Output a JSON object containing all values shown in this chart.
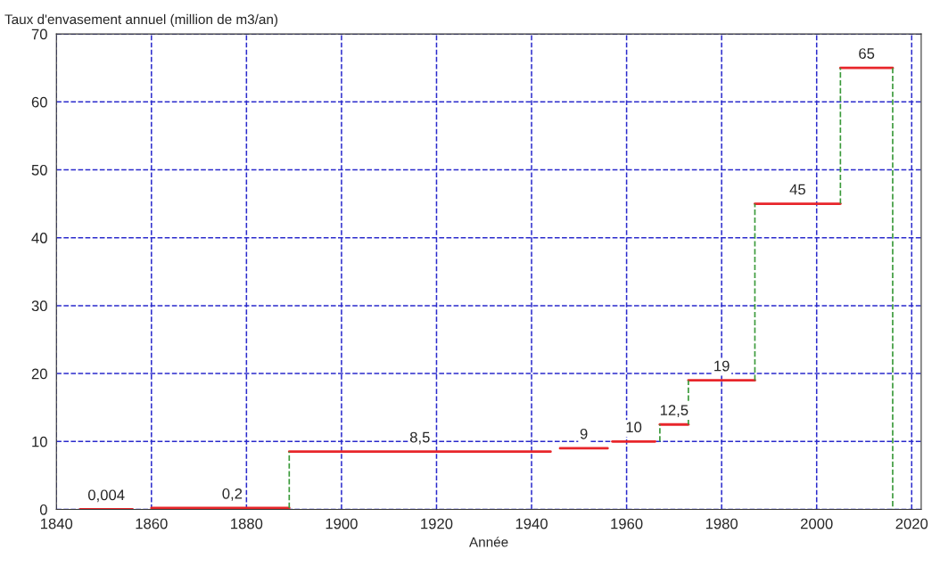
{
  "chart_data": {
    "type": "line",
    "ylabel": "Taux d'envasement annuel (million de m3/an)",
    "xlabel": "Année",
    "xlim": [
      1840,
      2022
    ],
    "xticks": [
      1840,
      1860,
      1880,
      1900,
      1920,
      1940,
      1960,
      1980,
      2000,
      2020
    ],
    "ylim": [
      0,
      70
    ],
    "yticks": [
      0,
      10,
      20,
      30,
      40,
      50,
      60,
      70
    ],
    "grid": true,
    "series": [
      {
        "color": "#e8262b",
        "x": [
          1845,
          1856
        ],
        "values": [
          0.004,
          0.004
        ]
      },
      {
        "color": "#e8262b",
        "x": [
          1860,
          1889
        ],
        "values": [
          0.2,
          0.2
        ]
      },
      {
        "color": "#e8262b",
        "x": [
          1889,
          1944
        ],
        "values": [
          8.5,
          8.5
        ]
      },
      {
        "color": "#e8262b",
        "x": [
          1946,
          1956
        ],
        "values": [
          9,
          9
        ]
      },
      {
        "color": "#e8262b",
        "x": [
          1957,
          1966
        ],
        "values": [
          10,
          10
        ]
      },
      {
        "color": "#e8262b",
        "x": [
          1967,
          1973
        ],
        "values": [
          12.5,
          12.5
        ]
      },
      {
        "color": "#e8262b",
        "x": [
          1973,
          1987
        ],
        "values": [
          19,
          19
        ]
      },
      {
        "color": "#e8262b",
        "x": [
          1987,
          2005
        ],
        "values": [
          45,
          45
        ]
      },
      {
        "color": "#e8262b",
        "x": [
          2005,
          2016
        ],
        "values": [
          65,
          65
        ]
      },
      {
        "color": "#3a9a3a",
        "line_style": "dashed",
        "x": [
          1889,
          1889
        ],
        "values": [
          0.2,
          8.5
        ]
      },
      {
        "color": "#3a9a3a",
        "line_style": "dashed",
        "x": [
          1967,
          1967
        ],
        "values": [
          10,
          12.5
        ]
      },
      {
        "color": "#3a9a3a",
        "line_style": "dashed",
        "x": [
          1973,
          1973
        ],
        "values": [
          12.5,
          19
        ]
      },
      {
        "color": "#3a9a3a",
        "line_style": "dashed",
        "x": [
          1987,
          1987
        ],
        "values": [
          19,
          45
        ]
      },
      {
        "color": "#3a9a3a",
        "line_style": "dashed",
        "x": [
          2005,
          2005
        ],
        "values": [
          45,
          65
        ]
      },
      {
        "color": "#3a9a3a",
        "line_style": "dashed",
        "x": [
          2016,
          2016
        ],
        "values": [
          65,
          0
        ]
      }
    ],
    "annotations": [
      {
        "text": "0,004",
        "x": 1850.5,
        "y": 0.004
      },
      {
        "text": "0,2",
        "x": 1877,
        "y": 0.2
      },
      {
        "text": "8,5",
        "x": 1916.5,
        "y": 8.5
      },
      {
        "text": "9",
        "x": 1951,
        "y": 9
      },
      {
        "text": "10",
        "x": 1961.5,
        "y": 10
      },
      {
        "text": "12,5",
        "x": 1970,
        "y": 12.5
      },
      {
        "text": "19",
        "x": 1980,
        "y": 19
      },
      {
        "text": "45",
        "x": 1996,
        "y": 45
      },
      {
        "text": "65",
        "x": 2010.5,
        "y": 65
      }
    ]
  }
}
